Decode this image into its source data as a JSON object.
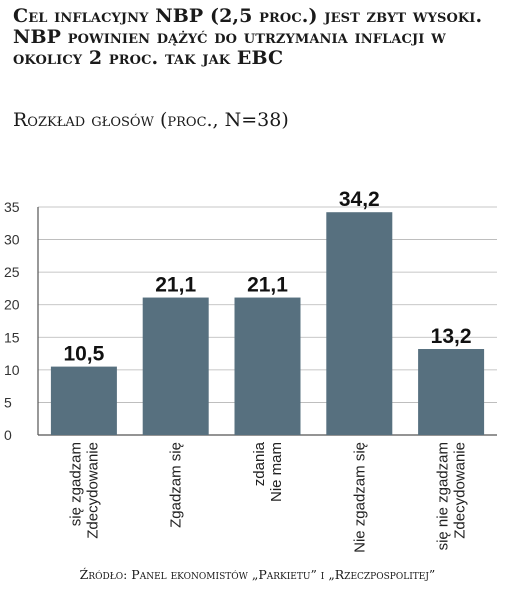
{
  "title": "Cel inflacyjny NBP (2,5 proc.) jest zbyt wysoki. NBP powinien dążyć do utrzymania inflacji w okolicy 2 proc. tak jak EBC",
  "subtitle": "Rozkład głosów (proc., N=38)",
  "source": "Źródło: Panel ekonomistów „Parkietu” i „Rzeczpospolitej”",
  "colors": {
    "bar": "#57707f",
    "grid": "#b5b5b5",
    "axis": "#555555"
  },
  "chart_data": {
    "type": "bar",
    "categories": [
      [
        "Zdecydowanie",
        "się zgadzam"
      ],
      [
        "Zgadzam się"
      ],
      [
        "Nie mam",
        "zdania"
      ],
      [
        "Nie zgadzam się"
      ],
      [
        "Zdecydowanie",
        "się nie zgadzam"
      ]
    ],
    "values": [
      10.5,
      21.1,
      21.1,
      34.2,
      13.2
    ],
    "value_labels": [
      "10,5",
      "21,1",
      "21,1",
      "34,2",
      "13,2"
    ],
    "y_ticks": [
      0,
      5,
      10,
      15,
      20,
      25,
      30,
      35
    ],
    "ylim": [
      0,
      35
    ],
    "grid": true,
    "legend": "none"
  }
}
